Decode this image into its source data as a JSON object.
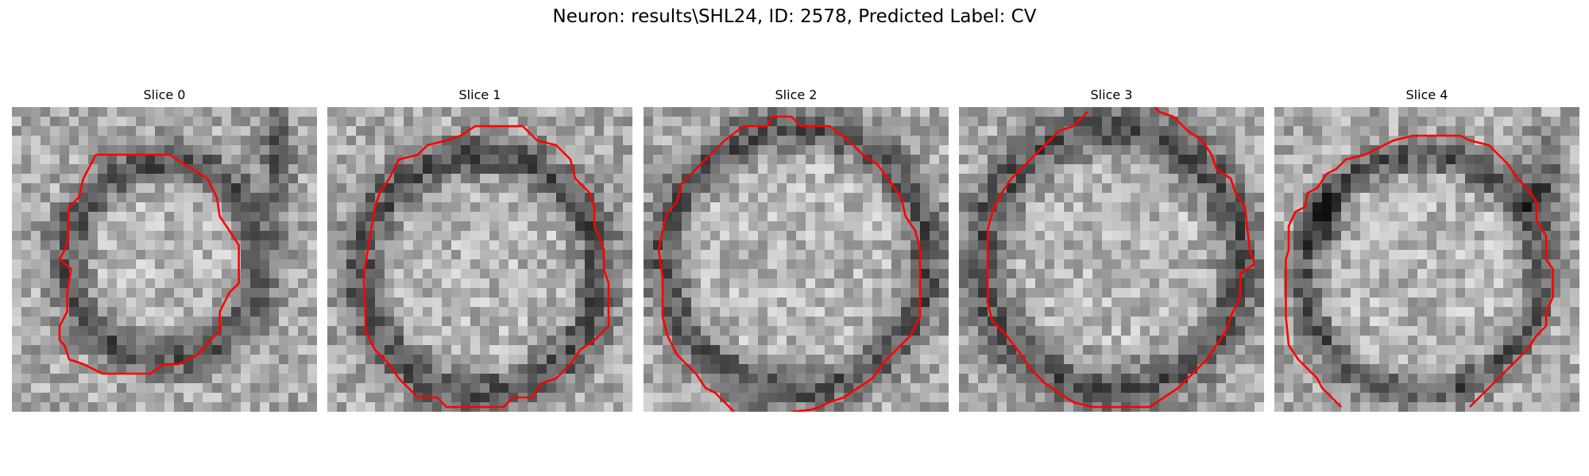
{
  "figure": {
    "title": "Neuron: results\\SHL24, ID: 2578, Predicted Label: CV"
  },
  "panels": [
    {
      "title": "Slice 0"
    },
    {
      "title": "Slice 1"
    },
    {
      "title": "Slice 2"
    },
    {
      "title": "Slice 3"
    },
    {
      "title": "Slice 4"
    }
  ],
  "colors": {
    "contour": "#ff0000",
    "background": "#ffffff"
  }
}
